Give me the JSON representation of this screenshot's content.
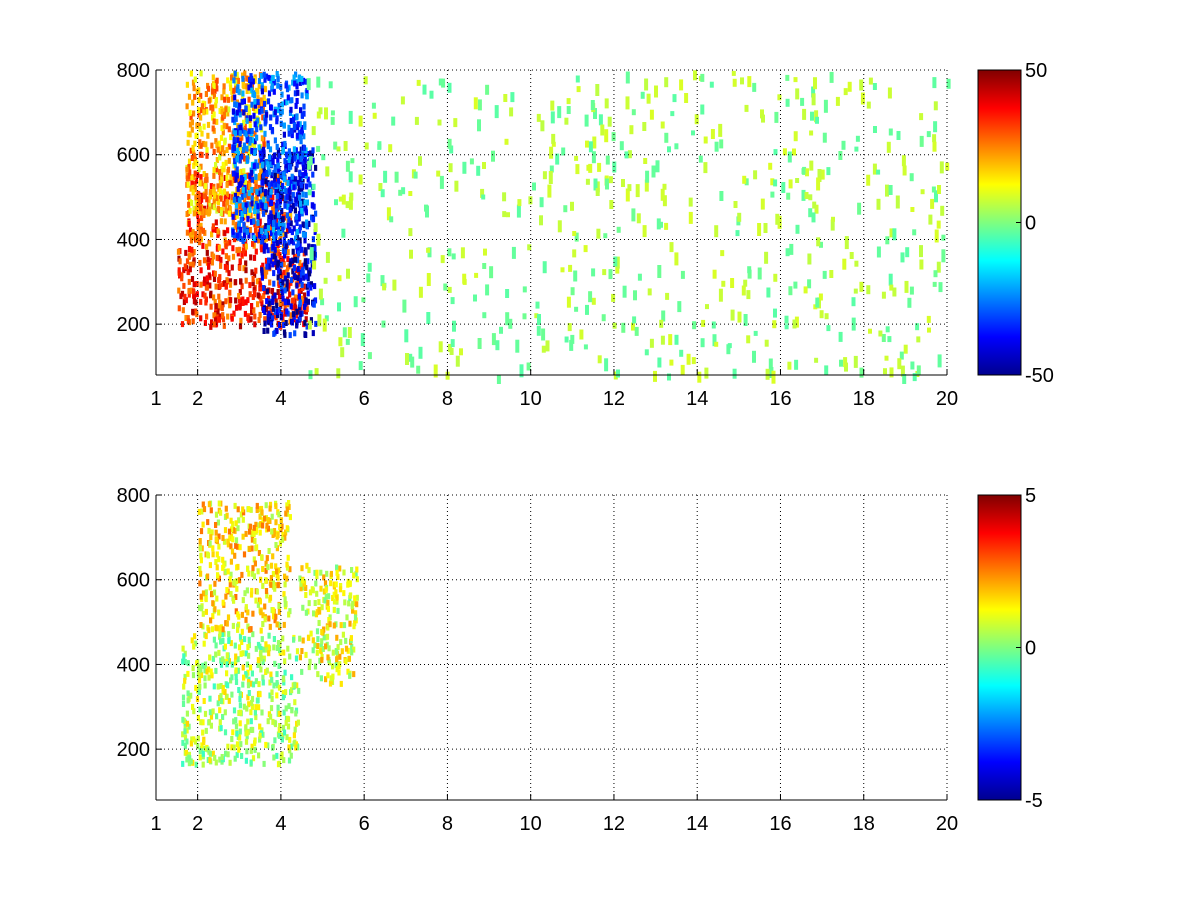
{
  "chart_data": [
    {
      "type": "heatmap",
      "colormap": "jet",
      "xlim": [
        1,
        20
      ],
      "ylim": [
        80,
        800
      ],
      "x_ticks": [
        1,
        2,
        4,
        6,
        8,
        10,
        12,
        14,
        16,
        18,
        20
      ],
      "y_ticks": [
        200,
        400,
        600,
        800
      ],
      "grid": true,
      "colorbar": {
        "min": -50,
        "max": 50,
        "ticks": [
          50,
          0,
          -50
        ]
      },
      "features": [
        {
          "x": [
            1.5,
            4.6
          ],
          "y": [
            200,
            380
          ],
          "value": 35
        },
        {
          "x": [
            1.7,
            4.2
          ],
          "y": [
            380,
            560
          ],
          "value": 30
        },
        {
          "x": [
            1.7,
            3.6
          ],
          "y": [
            460,
            800
          ],
          "value": 20
        },
        {
          "x": [
            3.5,
            4.8
          ],
          "y": [
            180,
            620
          ],
          "value": -40
        },
        {
          "x": [
            2.8,
            4.6
          ],
          "y": [
            400,
            800
          ],
          "value": -30
        },
        {
          "x": [
            4.6,
            20
          ],
          "y": [
            80,
            800
          ],
          "value": 3
        }
      ]
    },
    {
      "type": "heatmap",
      "colormap": "jet",
      "xlim": [
        1,
        20
      ],
      "ylim": [
        80,
        800
      ],
      "x_ticks": [
        1,
        2,
        4,
        6,
        8,
        10,
        12,
        14,
        16,
        18,
        20
      ],
      "y_ticks": [
        200,
        400,
        600,
        800
      ],
      "grid": true,
      "colorbar": {
        "min": -5,
        "max": 5,
        "ticks": [
          5,
          0,
          -5
        ]
      },
      "features": [
        {
          "x": [
            1.6,
            4.4
          ],
          "y": [
            170,
            480
          ],
          "value": 0.5
        },
        {
          "x": [
            2.0,
            4.2
          ],
          "y": [
            480,
            790
          ],
          "value": 1.5
        },
        {
          "x": [
            4.4,
            5.8
          ],
          "y": [
            360,
            640
          ],
          "value": 1.0
        }
      ]
    }
  ]
}
